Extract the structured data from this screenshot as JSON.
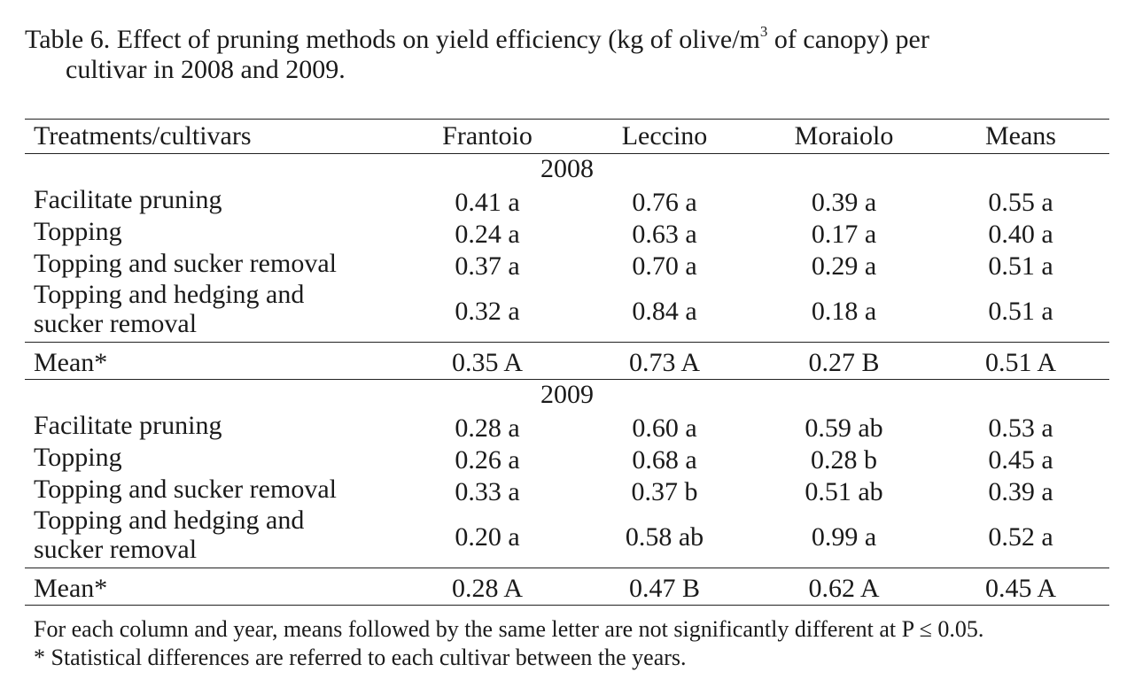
{
  "caption": {
    "line1_pre": "Table 6. Effect of pruning methods on yield efficiency (kg of olive/m",
    "line1_sup": "3",
    "line1_post": " of canopy) per",
    "line2": "cultivar in 2008 and 2009."
  },
  "header": {
    "treatments": "Treatments/cultivars",
    "col1": "Frantoio",
    "col2": "Leccino",
    "col3": "Moraiolo",
    "col4": "Means"
  },
  "blocks": [
    {
      "year": "2008",
      "rows": [
        {
          "treatment": "Facilitate pruning",
          "v": [
            "0.41 a",
            "0.76 a",
            "0.39 a",
            "0.55 a"
          ]
        },
        {
          "treatment": "Topping",
          "v": [
            "0.24 a",
            "0.63 a",
            "0.17 a",
            "0.40 a"
          ]
        },
        {
          "treatment": "Topping and sucker removal",
          "v": [
            "0.37 a",
            "0.70 a",
            "0.29 a",
            "0.51 a"
          ]
        },
        {
          "treatment_l1": "Topping and hedging and",
          "treatment_l2": "sucker removal",
          "v": [
            "0.32 a",
            "0.84 a",
            "0.18 a",
            "0.51 a"
          ]
        }
      ],
      "mean": {
        "label": "Mean*",
        "v": [
          "0.35 A",
          "0.73 A",
          "0.27 B",
          "0.51 A"
        ]
      }
    },
    {
      "year": "2009",
      "rows": [
        {
          "treatment": "Facilitate pruning",
          "v": [
            "0.28 a",
            "0.60 a",
            "0.59 ab",
            "0.53 a"
          ]
        },
        {
          "treatment": "Topping",
          "v": [
            "0.26 a",
            "0.68 a",
            "0.28 b",
            "0.45 a"
          ]
        },
        {
          "treatment": "Topping and sucker removal",
          "v": [
            "0.33 a",
            "0.37 b",
            "0.51 ab",
            "0.39 a"
          ]
        },
        {
          "treatment_l1": "Topping and hedging and",
          "treatment_l2": "sucker removal",
          "v": [
            "0.20 a",
            "0.58 ab",
            "0.99 a",
            "0.52 a"
          ]
        }
      ],
      "mean": {
        "label": "Mean*",
        "v": [
          "0.28 A",
          "0.47 B",
          "0.62 A",
          "0.45 A"
        ]
      }
    }
  ],
  "notes": {
    "note1": "For each column and year, means followed by the same letter are not significantly different at P ≤ 0.05.",
    "note2": "* Statistical differences are referred to each cultivar between the years."
  }
}
